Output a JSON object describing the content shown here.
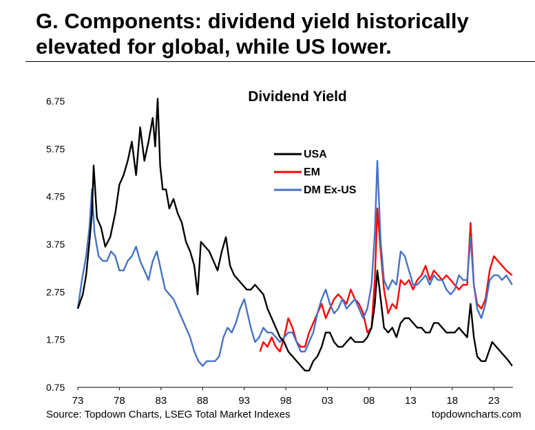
{
  "header": {
    "title_line1": "G. Components: dividend yield historically",
    "title_line2": "elevated for global, while US lower."
  },
  "footer": {
    "source": "Source: Topdown Charts, LSEG Total Market Indexes",
    "brand": "topdowncharts.com"
  },
  "chart_data": {
    "type": "line",
    "title": "Dividend Yield",
    "xlabel": "",
    "ylabel": "",
    "xlim": [
      1973.0,
      2025.3
    ],
    "ylim": [
      0.75,
      6.75
    ],
    "y_ticks": [
      "6.75",
      "5.75",
      "4.75",
      "3.75",
      "2.75",
      "1.75",
      "0.75"
    ],
    "x_ticks": [
      "73",
      "78",
      "83",
      "88",
      "93",
      "98",
      "03",
      "08",
      "13",
      "18",
      "23"
    ],
    "grid": false,
    "legend_position": "top-center",
    "series": [
      {
        "name": "USA",
        "color": "#000000",
        "points": [
          [
            1973.0,
            2.4
          ],
          [
            1973.6,
            2.7
          ],
          [
            1974.0,
            3.1
          ],
          [
            1974.4,
            3.8
          ],
          [
            1974.7,
            4.4
          ],
          [
            1974.9,
            5.4
          ],
          [
            1975.3,
            4.3
          ],
          [
            1975.8,
            4.1
          ],
          [
            1976.3,
            3.7
          ],
          [
            1976.9,
            3.9
          ],
          [
            1977.5,
            4.4
          ],
          [
            1978.0,
            5.0
          ],
          [
            1978.5,
            5.2
          ],
          [
            1979.0,
            5.5
          ],
          [
            1979.5,
            5.9
          ],
          [
            1980.0,
            5.2
          ],
          [
            1980.5,
            6.2
          ],
          [
            1981.0,
            5.5
          ],
          [
            1981.5,
            5.9
          ],
          [
            1982.0,
            6.4
          ],
          [
            1982.3,
            5.8
          ],
          [
            1982.6,
            6.8
          ],
          [
            1982.9,
            5.4
          ],
          [
            1983.2,
            4.9
          ],
          [
            1983.6,
            4.9
          ],
          [
            1984.0,
            4.5
          ],
          [
            1984.5,
            4.7
          ],
          [
            1985.0,
            4.4
          ],
          [
            1985.5,
            4.2
          ],
          [
            1986.0,
            3.8
          ],
          [
            1986.5,
            3.6
          ],
          [
            1987.0,
            3.3
          ],
          [
            1987.4,
            2.7
          ],
          [
            1987.8,
            3.8
          ],
          [
            1988.3,
            3.7
          ],
          [
            1988.8,
            3.6
          ],
          [
            1989.3,
            3.4
          ],
          [
            1989.8,
            3.2
          ],
          [
            1990.3,
            3.6
          ],
          [
            1990.8,
            3.9
          ],
          [
            1991.3,
            3.3
          ],
          [
            1991.8,
            3.1
          ],
          [
            1992.3,
            3.0
          ],
          [
            1992.8,
            2.9
          ],
          [
            1993.3,
            2.8
          ],
          [
            1993.8,
            2.8
          ],
          [
            1994.3,
            2.9
          ],
          [
            1994.8,
            2.8
          ],
          [
            1995.3,
            2.7
          ],
          [
            1995.8,
            2.4
          ],
          [
            1996.3,
            2.2
          ],
          [
            1996.8,
            2.0
          ],
          [
            1997.3,
            1.8
          ],
          [
            1997.8,
            1.7
          ],
          [
            1998.3,
            1.5
          ],
          [
            1998.8,
            1.4
          ],
          [
            1999.3,
            1.3
          ],
          [
            1999.8,
            1.2
          ],
          [
            2000.3,
            1.1
          ],
          [
            2000.8,
            1.1
          ],
          [
            2001.3,
            1.3
          ],
          [
            2001.8,
            1.4
          ],
          [
            2002.3,
            1.6
          ],
          [
            2002.8,
            1.9
          ],
          [
            2003.3,
            1.9
          ],
          [
            2003.8,
            1.7
          ],
          [
            2004.3,
            1.6
          ],
          [
            2004.8,
            1.6
          ],
          [
            2005.3,
            1.7
          ],
          [
            2005.8,
            1.8
          ],
          [
            2006.3,
            1.7
          ],
          [
            2006.8,
            1.7
          ],
          [
            2007.3,
            1.7
          ],
          [
            2007.8,
            1.8
          ],
          [
            2008.3,
            2.0
          ],
          [
            2008.7,
            2.5
          ],
          [
            2009.0,
            3.2
          ],
          [
            2009.4,
            2.6
          ],
          [
            2009.8,
            2.0
          ],
          [
            2010.3,
            1.9
          ],
          [
            2010.8,
            2.0
          ],
          [
            2011.3,
            1.8
          ],
          [
            2011.8,
            2.1
          ],
          [
            2012.3,
            2.2
          ],
          [
            2012.8,
            2.2
          ],
          [
            2013.3,
            2.1
          ],
          [
            2013.8,
            2.0
          ],
          [
            2014.3,
            2.0
          ],
          [
            2014.8,
            1.9
          ],
          [
            2015.3,
            1.9
          ],
          [
            2015.8,
            2.1
          ],
          [
            2016.3,
            2.1
          ],
          [
            2016.8,
            2.0
          ],
          [
            2017.3,
            1.9
          ],
          [
            2017.8,
            1.9
          ],
          [
            2018.3,
            1.9
          ],
          [
            2018.8,
            2.0
          ],
          [
            2019.3,
            1.9
          ],
          [
            2019.8,
            1.8
          ],
          [
            2020.2,
            2.5
          ],
          [
            2020.6,
            1.8
          ],
          [
            2021.0,
            1.4
          ],
          [
            2021.5,
            1.3
          ],
          [
            2022.0,
            1.3
          ],
          [
            2022.4,
            1.5
          ],
          [
            2022.8,
            1.7
          ],
          [
            2023.3,
            1.6
          ],
          [
            2023.8,
            1.5
          ],
          [
            2024.3,
            1.4
          ],
          [
            2024.8,
            1.3
          ],
          [
            2025.2,
            1.2
          ]
        ]
      },
      {
        "name": "EM",
        "color": "#ff0000",
        "points": [
          [
            1994.9,
            1.5
          ],
          [
            1995.3,
            1.7
          ],
          [
            1995.8,
            1.6
          ],
          [
            1996.3,
            1.8
          ],
          [
            1996.8,
            1.6
          ],
          [
            1997.3,
            1.5
          ],
          [
            1997.8,
            1.8
          ],
          [
            1998.3,
            2.2
          ],
          [
            1998.8,
            2.0
          ],
          [
            1999.3,
            1.7
          ],
          [
            1999.8,
            1.6
          ],
          [
            2000.3,
            1.6
          ],
          [
            2000.8,
            1.9
          ],
          [
            2001.3,
            2.1
          ],
          [
            2001.8,
            2.3
          ],
          [
            2002.3,
            2.5
          ],
          [
            2002.8,
            2.2
          ],
          [
            2003.3,
            2.4
          ],
          [
            2003.8,
            2.6
          ],
          [
            2004.3,
            2.7
          ],
          [
            2004.8,
            2.6
          ],
          [
            2005.3,
            2.5
          ],
          [
            2005.8,
            2.8
          ],
          [
            2006.3,
            2.6
          ],
          [
            2006.8,
            2.5
          ],
          [
            2007.3,
            2.3
          ],
          [
            2007.8,
            1.9
          ],
          [
            2008.3,
            2.0
          ],
          [
            2008.7,
            3.0
          ],
          [
            2009.0,
            4.5
          ],
          [
            2009.4,
            3.6
          ],
          [
            2009.8,
            2.8
          ],
          [
            2010.3,
            2.3
          ],
          [
            2010.8,
            2.5
          ],
          [
            2011.3,
            2.4
          ],
          [
            2011.8,
            3.0
          ],
          [
            2012.3,
            2.9
          ],
          [
            2012.8,
            3.0
          ],
          [
            2013.3,
            2.8
          ],
          [
            2013.8,
            3.0
          ],
          [
            2014.3,
            3.1
          ],
          [
            2014.8,
            3.3
          ],
          [
            2015.3,
            3.0
          ],
          [
            2015.8,
            3.2
          ],
          [
            2016.3,
            3.1
          ],
          [
            2016.8,
            3.0
          ],
          [
            2017.3,
            3.1
          ],
          [
            2017.8,
            3.0
          ],
          [
            2018.3,
            2.9
          ],
          [
            2018.8,
            2.8
          ],
          [
            2019.3,
            2.9
          ],
          [
            2019.8,
            2.9
          ],
          [
            2020.2,
            4.2
          ],
          [
            2020.6,
            2.9
          ],
          [
            2021.0,
            2.5
          ],
          [
            2021.5,
            2.4
          ],
          [
            2022.0,
            2.6
          ],
          [
            2022.5,
            3.2
          ],
          [
            2023.0,
            3.5
          ],
          [
            2023.5,
            3.4
          ],
          [
            2024.0,
            3.3
          ],
          [
            2024.5,
            3.2
          ],
          [
            2025.2,
            3.1
          ]
        ]
      },
      {
        "name": "DM Ex-US",
        "color": "#4472c4",
        "points": [
          [
            1973.0,
            2.4
          ],
          [
            1973.5,
            3.0
          ],
          [
            1974.0,
            3.5
          ],
          [
            1974.4,
            4.1
          ],
          [
            1974.7,
            4.9
          ],
          [
            1975.0,
            4.0
          ],
          [
            1975.5,
            3.5
          ],
          [
            1976.0,
            3.4
          ],
          [
            1976.5,
            3.4
          ],
          [
            1977.0,
            3.6
          ],
          [
            1977.5,
            3.5
          ],
          [
            1978.0,
            3.2
          ],
          [
            1978.5,
            3.2
          ],
          [
            1979.0,
            3.4
          ],
          [
            1979.5,
            3.5
          ],
          [
            1980.0,
            3.7
          ],
          [
            1980.5,
            3.4
          ],
          [
            1981.0,
            3.2
          ],
          [
            1981.5,
            3.0
          ],
          [
            1982.0,
            3.4
          ],
          [
            1982.5,
            3.6
          ],
          [
            1983.0,
            3.2
          ],
          [
            1983.5,
            2.8
          ],
          [
            1984.0,
            2.7
          ],
          [
            1984.5,
            2.6
          ],
          [
            1985.0,
            2.4
          ],
          [
            1985.5,
            2.2
          ],
          [
            1986.0,
            2.0
          ],
          [
            1986.5,
            1.8
          ],
          [
            1987.0,
            1.5
          ],
          [
            1987.5,
            1.3
          ],
          [
            1988.0,
            1.2
          ],
          [
            1988.5,
            1.3
          ],
          [
            1989.0,
            1.3
          ],
          [
            1989.5,
            1.3
          ],
          [
            1990.0,
            1.4
          ],
          [
            1990.5,
            1.8
          ],
          [
            1991.0,
            2.0
          ],
          [
            1991.5,
            1.9
          ],
          [
            1992.0,
            2.1
          ],
          [
            1992.5,
            2.4
          ],
          [
            1993.0,
            2.6
          ],
          [
            1993.4,
            2.3
          ],
          [
            1993.8,
            2.0
          ],
          [
            1994.3,
            1.7
          ],
          [
            1994.8,
            1.8
          ],
          [
            1995.3,
            2.0
          ],
          [
            1995.8,
            1.9
          ],
          [
            1996.3,
            1.9
          ],
          [
            1996.8,
            1.8
          ],
          [
            1997.3,
            1.7
          ],
          [
            1997.8,
            1.8
          ],
          [
            1998.3,
            1.9
          ],
          [
            1998.8,
            1.9
          ],
          [
            1999.3,
            1.7
          ],
          [
            1999.8,
            1.5
          ],
          [
            2000.3,
            1.5
          ],
          [
            2000.8,
            1.7
          ],
          [
            2001.3,
            1.9
          ],
          [
            2001.8,
            2.3
          ],
          [
            2002.3,
            2.6
          ],
          [
            2002.8,
            2.8
          ],
          [
            2003.3,
            2.5
          ],
          [
            2003.8,
            2.3
          ],
          [
            2004.3,
            2.4
          ],
          [
            2004.8,
            2.6
          ],
          [
            2005.3,
            2.4
          ],
          [
            2005.8,
            2.5
          ],
          [
            2006.3,
            2.6
          ],
          [
            2006.8,
            2.4
          ],
          [
            2007.3,
            2.2
          ],
          [
            2007.8,
            2.4
          ],
          [
            2008.3,
            2.9
          ],
          [
            2008.7,
            4.0
          ],
          [
            2009.0,
            5.5
          ],
          [
            2009.4,
            3.8
          ],
          [
            2009.8,
            3.0
          ],
          [
            2010.3,
            2.8
          ],
          [
            2010.8,
            3.0
          ],
          [
            2011.3,
            2.9
          ],
          [
            2011.8,
            3.6
          ],
          [
            2012.3,
            3.5
          ],
          [
            2012.8,
            3.2
          ],
          [
            2013.3,
            2.9
          ],
          [
            2013.8,
            2.9
          ],
          [
            2014.3,
            3.0
          ],
          [
            2014.8,
            3.1
          ],
          [
            2015.3,
            2.9
          ],
          [
            2015.8,
            3.1
          ],
          [
            2016.3,
            3.0
          ],
          [
            2016.8,
            3.0
          ],
          [
            2017.3,
            2.8
          ],
          [
            2017.8,
            2.7
          ],
          [
            2018.3,
            2.8
          ],
          [
            2018.8,
            3.1
          ],
          [
            2019.3,
            3.0
          ],
          [
            2019.8,
            3.0
          ],
          [
            2020.2,
            3.9
          ],
          [
            2020.6,
            2.9
          ],
          [
            2021.0,
            2.4
          ],
          [
            2021.5,
            2.2
          ],
          [
            2022.0,
            2.5
          ],
          [
            2022.5,
            3.0
          ],
          [
            2023.0,
            3.1
          ],
          [
            2023.5,
            3.1
          ],
          [
            2024.0,
            3.0
          ],
          [
            2024.5,
            3.1
          ],
          [
            2025.2,
            2.9
          ]
        ]
      }
    ]
  }
}
